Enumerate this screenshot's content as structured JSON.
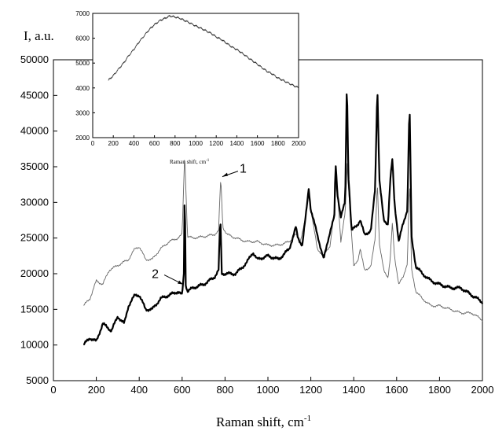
{
  "chart_data": [
    {
      "type": "line",
      "title": "",
      "xlabel": "Raman shift, cm",
      "xlabel_sup": "-1",
      "ylabel": "I, a.u.",
      "xlim": [
        0,
        2000
      ],
      "ylim": [
        5000,
        50000
      ],
      "xticks": [
        0,
        200,
        400,
        600,
        800,
        1000,
        1200,
        1400,
        1600,
        1800,
        2000
      ],
      "yticks": [
        5000,
        10000,
        15000,
        20000,
        25000,
        30000,
        35000,
        40000,
        45000,
        50000
      ],
      "grid": false,
      "annotations": [
        {
          "label": "1",
          "x": 780,
          "y": 33500
        },
        {
          "label": "2",
          "x": 612,
          "y": 18500
        }
      ],
      "series": [
        {
          "curve": "1",
          "color": "#666666",
          "style": "thin",
          "x": [
            140,
            170,
            200,
            230,
            260,
            290,
            320,
            350,
            380,
            400,
            430,
            460,
            500,
            540,
            580,
            600,
            612,
            625,
            650,
            700,
            750,
            770,
            780,
            790,
            810,
            850,
            900,
            950,
            1000,
            1050,
            1100,
            1130,
            1150,
            1170,
            1190,
            1200,
            1230,
            1260,
            1290,
            1310,
            1320,
            1340,
            1360,
            1370,
            1380,
            1400,
            1420,
            1430,
            1450,
            1480,
            1500,
            1510,
            1520,
            1540,
            1560,
            1570,
            1580,
            1590,
            1610,
            1630,
            1650,
            1660,
            1670,
            1690,
            1720,
            1760,
            1800,
            1850,
            1900,
            1950,
            2000
          ],
          "y": [
            15500,
            16500,
            19000,
            18500,
            20500,
            21000,
            21500,
            22000,
            23500,
            23800,
            22000,
            22000,
            23500,
            24500,
            25000,
            25500,
            37000,
            25200,
            25000,
            25200,
            25500,
            26000,
            33500,
            26500,
            25500,
            25000,
            24500,
            24500,
            24000,
            24000,
            24500,
            25500,
            24500,
            27000,
            31000,
            29000,
            23500,
            22500,
            24000,
            29000,
            33500,
            24500,
            28500,
            35500,
            30000,
            21000,
            22000,
            23500,
            20500,
            21000,
            25000,
            33000,
            24000,
            20500,
            19500,
            22000,
            27000,
            22500,
            18500,
            19500,
            21500,
            33000,
            20500,
            17500,
            16500,
            15500,
            15500,
            15000,
            14500,
            14500,
            13500
          ]
        },
        {
          "curve": "2",
          "color": "#000000",
          "style": "thick",
          "x": [
            140,
            170,
            200,
            230,
            250,
            270,
            300,
            330,
            350,
            380,
            400,
            430,
            460,
            500,
            540,
            580,
            600,
            608,
            612,
            617,
            625,
            650,
            700,
            750,
            770,
            778,
            785,
            800,
            850,
            900,
            930,
            950,
            1000,
            1050,
            1100,
            1130,
            1140,
            1160,
            1180,
            1190,
            1200,
            1230,
            1260,
            1290,
            1310,
            1315,
            1325,
            1340,
            1360,
            1368,
            1375,
            1390,
            1420,
            1430,
            1450,
            1480,
            1500,
            1510,
            1520,
            1540,
            1560,
            1570,
            1580,
            1590,
            1610,
            1630,
            1650,
            1660,
            1670,
            1690,
            1720,
            1760,
            1800,
            1850,
            1900,
            1950,
            2000
          ],
          "y": [
            10000,
            11000,
            10500,
            13000,
            12500,
            12000,
            14000,
            13000,
            15500,
            17000,
            17000,
            15000,
            15000,
            16500,
            17000,
            17500,
            17000,
            20000,
            33000,
            18500,
            17500,
            18000,
            18500,
            19500,
            20500,
            28000,
            20000,
            20000,
            20000,
            21500,
            23000,
            22000,
            22500,
            22000,
            23500,
            26500,
            25000,
            24000,
            29000,
            32000,
            29000,
            25500,
            22000,
            26000,
            28000,
            35500,
            31000,
            28000,
            30000,
            47500,
            34000,
            26000,
            27000,
            27500,
            25500,
            26000,
            32000,
            46500,
            33000,
            27500,
            27000,
            33000,
            36000,
            30000,
            24500,
            27000,
            29000,
            44000,
            25000,
            21000,
            20000,
            19000,
            18500,
            18000,
            18000,
            17000,
            16000
          ]
        }
      ]
    },
    {
      "type": "line",
      "title": "",
      "xlabel": "Raman shift, cm",
      "xlabel_sup": "-1",
      "ylabel": "",
      "xlim": [
        0,
        2000
      ],
      "ylim": [
        2000,
        7000
      ],
      "xticks": [
        0,
        200,
        400,
        600,
        800,
        1000,
        1200,
        1400,
        1600,
        1800,
        2000
      ],
      "yticks": [
        2000,
        3000,
        4000,
        5000,
        6000,
        7000
      ],
      "grid": false,
      "series": [
        {
          "color": "#333333",
          "x": [
            150,
            200,
            250,
            300,
            350,
            400,
            450,
            500,
            550,
            600,
            650,
            700,
            750,
            800,
            850,
            900,
            950,
            1000,
            1050,
            1100,
            1150,
            1200,
            1250,
            1300,
            1350,
            1400,
            1450,
            1500,
            1550,
            1600,
            1650,
            1700,
            1750,
            1800,
            1850,
            1900,
            1950,
            2000
          ],
          "y": [
            4300,
            4500,
            4750,
            5000,
            5300,
            5550,
            5850,
            6100,
            6350,
            6550,
            6700,
            6800,
            6900,
            6850,
            6800,
            6700,
            6600,
            6500,
            6400,
            6300,
            6200,
            6050,
            5950,
            5800,
            5650,
            5550,
            5400,
            5250,
            5100,
            4950,
            4800,
            4650,
            4550,
            4400,
            4300,
            4200,
            4100,
            4000
          ]
        }
      ]
    }
  ]
}
